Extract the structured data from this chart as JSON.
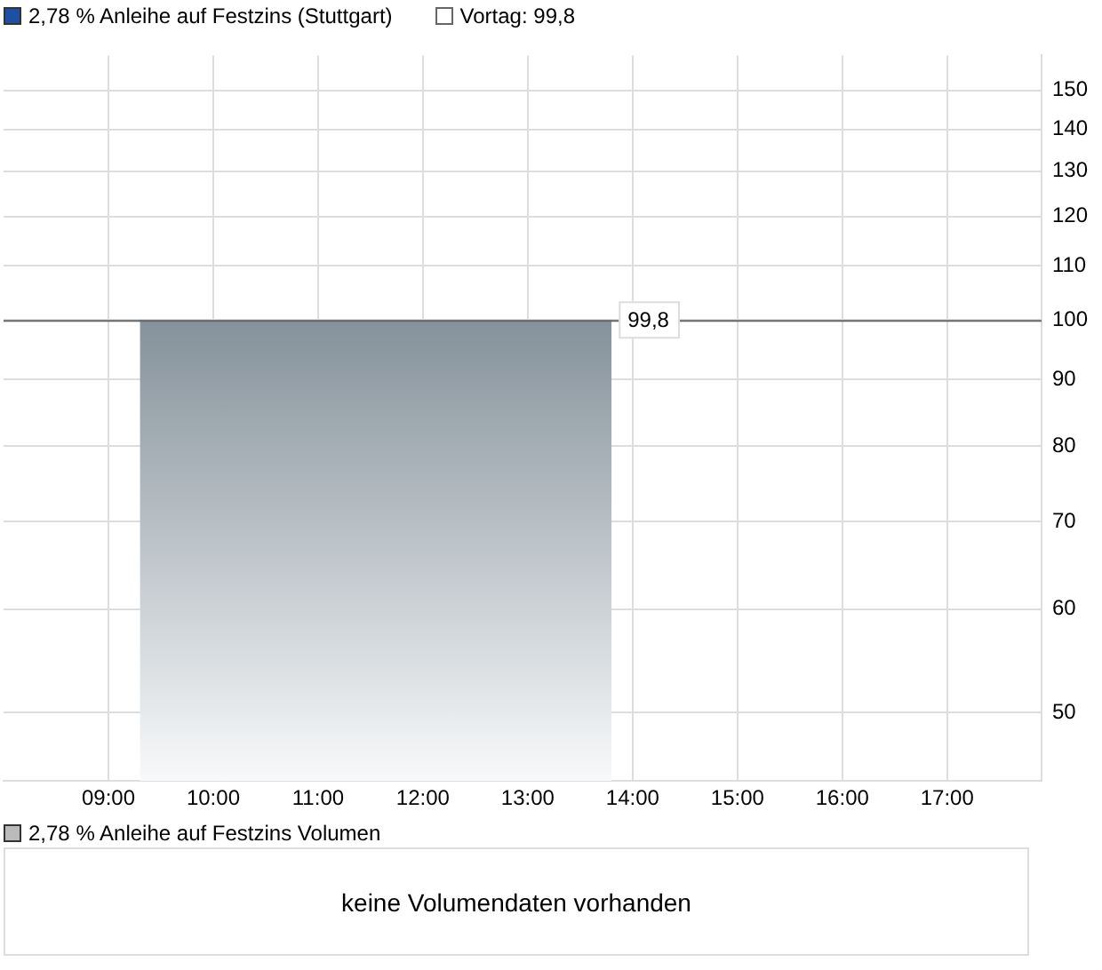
{
  "chart_data": [
    {
      "type": "area",
      "x": [
        9.3,
        13.8
      ],
      "series": [
        {
          "name": "2,78 % Anleihe auf Festzins (Stuttgart)",
          "color": "#85929b",
          "values": [
            99.8,
            99.8
          ],
          "value_labels": [
            null,
            "99,8"
          ]
        }
      ],
      "log": true,
      "ylim": [
        44.3,
        159.5
      ],
      "yticks": [
        50,
        60,
        70,
        80,
        90,
        100,
        110,
        120,
        130,
        140,
        150
      ],
      "xlim": [
        8,
        17.9
      ],
      "xticks": [
        {
          "value": 9,
          "label": "09:00"
        },
        {
          "value": 10,
          "label": "10:00"
        },
        {
          "value": 11,
          "label": "11:00"
        },
        {
          "value": 12,
          "label": "12:00"
        },
        {
          "value": 13,
          "label": "13:00"
        },
        {
          "value": 14,
          "label": "14:00"
        },
        {
          "value": 15,
          "label": "15:00"
        },
        {
          "value": 16,
          "label": "16:00"
        },
        {
          "value": 17,
          "label": "17:00"
        }
      ],
      "ref_lines": [
        {
          "axis": "y",
          "value": 99.8,
          "label": "Vortag: 99,8",
          "color": "#666666"
        }
      ],
      "grid": true,
      "legend": "top left"
    },
    {
      "type": "other",
      "title": "2,78 % Anleihe auf Festzins Volumen",
      "annotations": [
        "keine Volumendaten vorhanden"
      ]
    }
  ]
}
